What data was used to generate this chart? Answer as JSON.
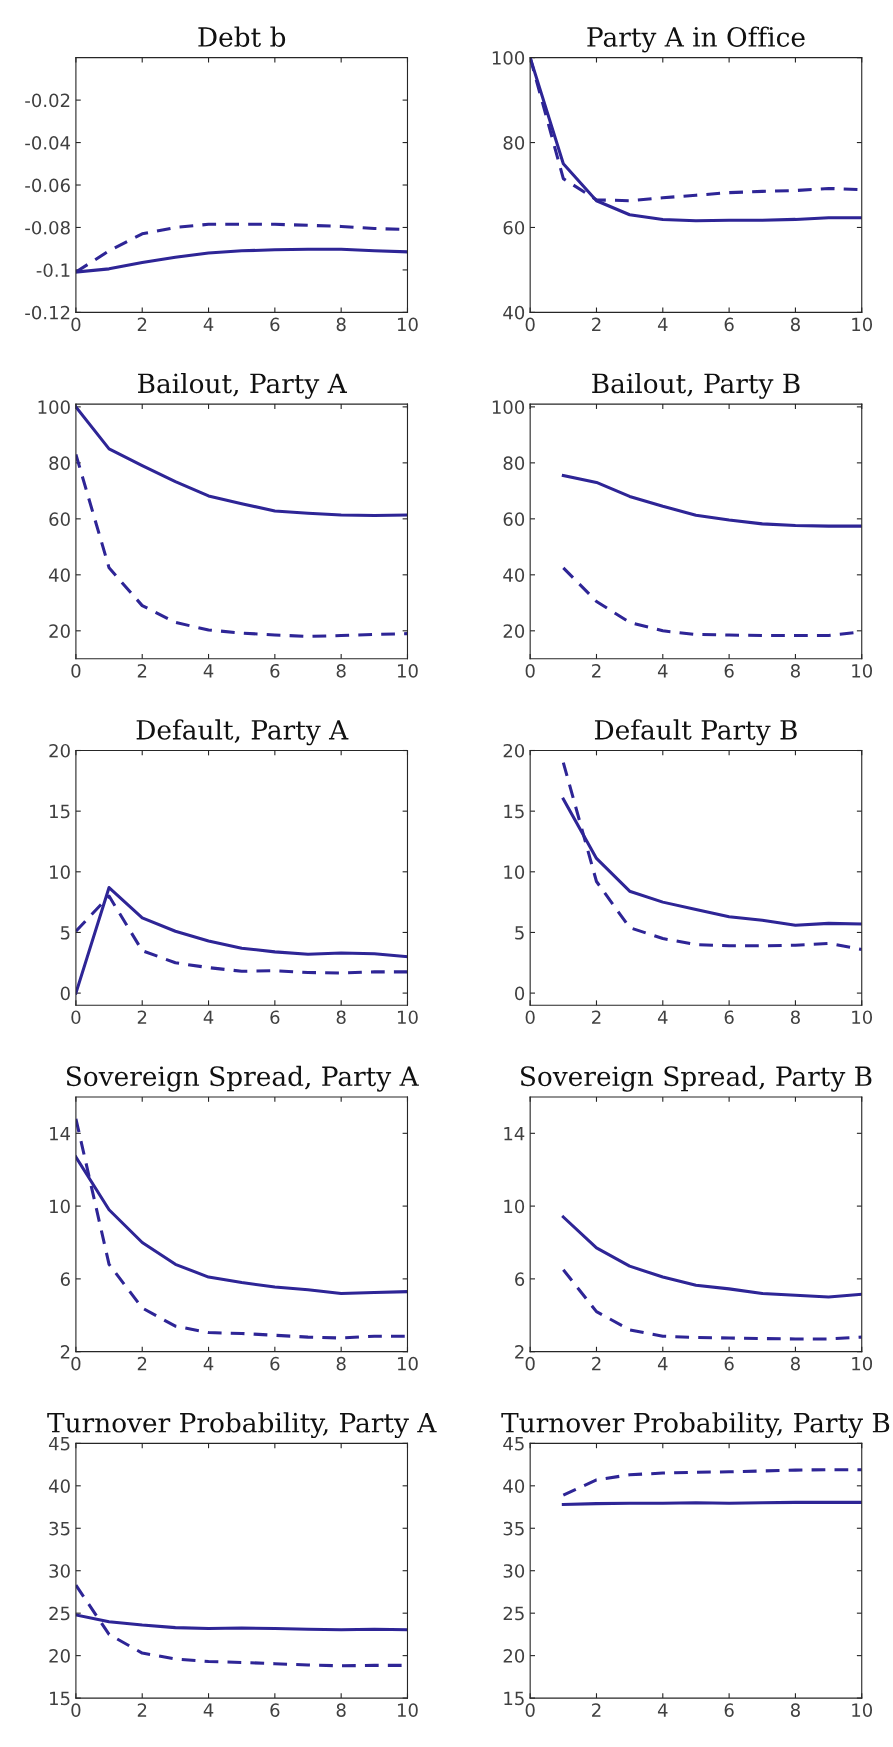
{
  "chart_data": [
    {
      "type": "line",
      "title": "Debt b",
      "xlim": [
        0,
        10
      ],
      "xticks": [
        0,
        2,
        4,
        6,
        8,
        10
      ],
      "ylim": [
        -0.12,
        0
      ],
      "yticks": [
        {
          "value": -0.12,
          "label": "-0.12"
        },
        {
          "value": -0.1,
          "label": "-0.1"
        },
        {
          "value": -0.08,
          "label": "-0.08"
        },
        {
          "value": -0.06,
          "label": "-0.06"
        },
        {
          "value": -0.04,
          "label": "-0.04"
        },
        {
          "value": -0.02,
          "label": "-0.02"
        }
      ],
      "grid": false,
      "series": [
        {
          "color": "#2e2596",
          "line_style": "solid",
          "x": [
            0,
            1,
            2,
            3,
            4,
            5,
            6,
            7,
            8,
            9,
            10
          ],
          "values": [
            -0.101,
            -0.0995,
            -0.0965,
            -0.094,
            -0.092,
            -0.091,
            -0.0905,
            -0.0903,
            -0.0903,
            -0.091,
            -0.0915
          ]
        },
        {
          "color": "#2e2596",
          "line_style": "dashed",
          "x": [
            0,
            1,
            2,
            3,
            4,
            5,
            6,
            7,
            8,
            9,
            10
          ],
          "values": [
            -0.101,
            -0.091,
            -0.083,
            -0.08,
            -0.0785,
            -0.0785,
            -0.0785,
            -0.079,
            -0.0795,
            -0.0805,
            -0.081
          ]
        }
      ]
    },
    {
      "type": "line",
      "title": "Party A in Office",
      "xlim": [
        0,
        10
      ],
      "xticks": [
        0,
        2,
        4,
        6,
        8,
        10
      ],
      "ylim": [
        40,
        100
      ],
      "yticks": [
        40,
        60,
        80,
        100
      ],
      "grid": false,
      "series": [
        {
          "color": "#2e2596",
          "line_style": "solid",
          "x": [
            0,
            1,
            2,
            3,
            4,
            5,
            6,
            7,
            8,
            9,
            10
          ],
          "values": [
            100,
            75,
            66.3,
            63,
            61.9,
            61.6,
            61.7,
            61.7,
            61.9,
            62.3,
            62.3
          ]
        },
        {
          "color": "#2e2596",
          "line_style": "dashed",
          "x": [
            0,
            1,
            2,
            3,
            4,
            5,
            6,
            7,
            8,
            9,
            10
          ],
          "values": [
            100,
            71.5,
            66.5,
            66.3,
            67,
            67.6,
            68.2,
            68.5,
            68.7,
            69.2,
            68.9
          ]
        }
      ]
    },
    {
      "type": "line",
      "title": "Bailout, Party A",
      "xlim": [
        0,
        10
      ],
      "xticks": [
        0,
        2,
        4,
        6,
        8,
        10
      ],
      "ylim": [
        10,
        101
      ],
      "yticks": [
        20,
        40,
        60,
        80,
        100
      ],
      "grid": false,
      "series": [
        {
          "color": "#2e2596",
          "line_style": "solid",
          "x": [
            0,
            1,
            2,
            3,
            4,
            5,
            6,
            7,
            8,
            9,
            10
          ],
          "values": [
            100,
            85,
            79,
            73.3,
            68.2,
            65.4,
            62.8,
            62,
            61.4,
            61.2,
            61.4
          ]
        },
        {
          "color": "#2e2596",
          "line_style": "dashed",
          "x": [
            0,
            1,
            2,
            3,
            4,
            5,
            6,
            7,
            8,
            9,
            10
          ],
          "values": [
            83,
            42.5,
            29,
            23,
            20.3,
            19.2,
            18.5,
            18,
            18.3,
            18.7,
            19
          ]
        }
      ]
    },
    {
      "type": "line",
      "title": "Bailout, Party B",
      "xlim": [
        0,
        10
      ],
      "xticks": [
        0,
        2,
        4,
        6,
        8,
        10
      ],
      "ylim": [
        10,
        101
      ],
      "yticks": [
        20,
        40,
        60,
        80,
        100
      ],
      "grid": false,
      "series": [
        {
          "color": "#2e2596",
          "line_style": "solid",
          "x": [
            1,
            2,
            3,
            4,
            5,
            6,
            7,
            8,
            9,
            10
          ],
          "values": [
            75.5,
            73,
            68,
            64.5,
            61.3,
            59.6,
            58.2,
            57.6,
            57.4,
            57.4
          ]
        },
        {
          "color": "#2e2596",
          "line_style": "dashed",
          "x": [
            1,
            2,
            3,
            4,
            5,
            6,
            7,
            8,
            9,
            10
          ],
          "values": [
            42.5,
            30.5,
            23,
            20,
            18.7,
            18.5,
            18.3,
            18.3,
            18.3,
            19.6
          ]
        }
      ]
    },
    {
      "type": "line",
      "title": "Default, Party A",
      "xlim": [
        0,
        10
      ],
      "xticks": [
        0,
        2,
        4,
        6,
        8,
        10
      ],
      "ylim": [
        -1,
        20
      ],
      "yticks": [
        0,
        5,
        10,
        15,
        20
      ],
      "grid": false,
      "series": [
        {
          "color": "#2e2596",
          "line_style": "solid",
          "x": [
            0,
            1,
            2,
            3,
            4,
            5,
            6,
            7,
            8,
            9,
            10
          ],
          "values": [
            0,
            8.7,
            6.2,
            5.1,
            4.3,
            3.7,
            3.4,
            3.2,
            3.3,
            3.25,
            3.0
          ]
        },
        {
          "color": "#2e2596",
          "line_style": "dashed",
          "x": [
            0,
            1,
            2,
            3,
            4,
            5,
            6,
            7,
            8,
            9,
            10
          ],
          "values": [
            5.1,
            8,
            3.5,
            2.5,
            2.1,
            1.8,
            1.85,
            1.7,
            1.65,
            1.75,
            1.75
          ]
        }
      ]
    },
    {
      "type": "line",
      "title": "Default Party B",
      "xlim": [
        0,
        10
      ],
      "xticks": [
        0,
        2,
        4,
        6,
        8,
        10
      ],
      "ylim": [
        -1,
        20
      ],
      "yticks": [
        0,
        5,
        10,
        15,
        20
      ],
      "grid": false,
      "series": [
        {
          "color": "#2e2596",
          "line_style": "solid",
          "x": [
            1,
            2,
            3,
            4,
            5,
            6,
            7,
            8,
            9,
            10
          ],
          "values": [
            16,
            11.1,
            8.4,
            7.5,
            6.9,
            6.3,
            6.0,
            5.6,
            5.75,
            5.7
          ]
        },
        {
          "color": "#2e2596",
          "line_style": "dashed",
          "x": [
            1,
            2,
            3,
            4,
            5,
            6,
            7,
            8,
            9,
            10
          ],
          "values": [
            19,
            9.2,
            5.4,
            4.5,
            4.0,
            3.9,
            3.9,
            3.95,
            4.1,
            3.6
          ]
        }
      ]
    },
    {
      "type": "line",
      "title": "Sovereign Spread, Party A",
      "xlim": [
        0,
        10
      ],
      "xticks": [
        0,
        2,
        4,
        6,
        8,
        10
      ],
      "ylim": [
        2,
        16
      ],
      "yticks": [
        2,
        6,
        10,
        14
      ],
      "grid": false,
      "series": [
        {
          "color": "#2e2596",
          "line_style": "solid",
          "x": [
            0,
            1,
            2,
            3,
            4,
            5,
            6,
            7,
            8,
            9,
            10
          ],
          "values": [
            12.7,
            9.8,
            8.0,
            6.8,
            6.1,
            5.8,
            5.55,
            5.4,
            5.2,
            5.25,
            5.3
          ]
        },
        {
          "color": "#2e2596",
          "line_style": "dashed",
          "x": [
            0,
            1,
            2,
            3,
            4,
            5,
            6,
            7,
            8,
            9,
            10
          ],
          "values": [
            14.8,
            6.8,
            4.4,
            3.4,
            3.05,
            3.0,
            2.9,
            2.8,
            2.75,
            2.85,
            2.85
          ]
        }
      ]
    },
    {
      "type": "line",
      "title": "Sovereign Spread, Party B",
      "xlim": [
        0,
        10
      ],
      "xticks": [
        0,
        2,
        4,
        6,
        8,
        10
      ],
      "ylim": [
        2,
        16
      ],
      "yticks": [
        2,
        6,
        10,
        14
      ],
      "grid": false,
      "series": [
        {
          "color": "#2e2596",
          "line_style": "solid",
          "x": [
            1,
            2,
            3,
            4,
            5,
            6,
            7,
            8,
            9,
            10
          ],
          "values": [
            9.4,
            7.7,
            6.7,
            6.1,
            5.65,
            5.45,
            5.2,
            5.1,
            5.0,
            5.15
          ]
        },
        {
          "color": "#2e2596",
          "line_style": "dashed",
          "x": [
            1,
            2,
            3,
            4,
            5,
            6,
            7,
            8,
            9,
            10
          ],
          "values": [
            6.5,
            4.2,
            3.2,
            2.85,
            2.78,
            2.75,
            2.72,
            2.7,
            2.7,
            2.8
          ]
        }
      ]
    },
    {
      "type": "line",
      "title": "Turnover Probability, Party A",
      "xlim": [
        0,
        10
      ],
      "xticks": [
        0,
        2,
        4,
        6,
        8,
        10
      ],
      "ylim": [
        15,
        45
      ],
      "yticks": [
        15,
        20,
        25,
        30,
        35,
        40,
        45
      ],
      "grid": false,
      "series": [
        {
          "color": "#2e2596",
          "line_style": "solid",
          "x": [
            0,
            1,
            2,
            3,
            4,
            5,
            6,
            7,
            8,
            9,
            10
          ],
          "values": [
            24.8,
            24,
            23.6,
            23.3,
            23.2,
            23.25,
            23.2,
            23.1,
            23.05,
            23.1,
            23.05
          ]
        },
        {
          "color": "#2e2596",
          "line_style": "dashed",
          "x": [
            0,
            1,
            2,
            3,
            4,
            5,
            6,
            7,
            8,
            9,
            10
          ],
          "values": [
            28.3,
            22.5,
            20.3,
            19.6,
            19.3,
            19.2,
            19.05,
            18.9,
            18.8,
            18.85,
            18.85
          ]
        }
      ]
    },
    {
      "type": "line",
      "title": "Turnover Probability, Party B",
      "xlim": [
        0,
        10
      ],
      "xticks": [
        0,
        2,
        4,
        6,
        8,
        10
      ],
      "ylim": [
        15,
        45
      ],
      "yticks": [
        15,
        20,
        25,
        30,
        35,
        40,
        45
      ],
      "grid": false,
      "series": [
        {
          "color": "#2e2596",
          "line_style": "solid",
          "x": [
            1,
            2,
            3,
            4,
            5,
            6,
            7,
            8,
            9,
            10
          ],
          "values": [
            37.8,
            37.9,
            37.95,
            37.95,
            38,
            37.95,
            38,
            38.05,
            38.05,
            38.05
          ]
        },
        {
          "color": "#2e2596",
          "line_style": "dashed",
          "x": [
            1,
            2,
            3,
            4,
            5,
            6,
            7,
            8,
            9,
            10
          ],
          "values": [
            38.9,
            40.7,
            41.3,
            41.5,
            41.6,
            41.65,
            41.75,
            41.85,
            41.9,
            41.9
          ]
        }
      ]
    }
  ]
}
